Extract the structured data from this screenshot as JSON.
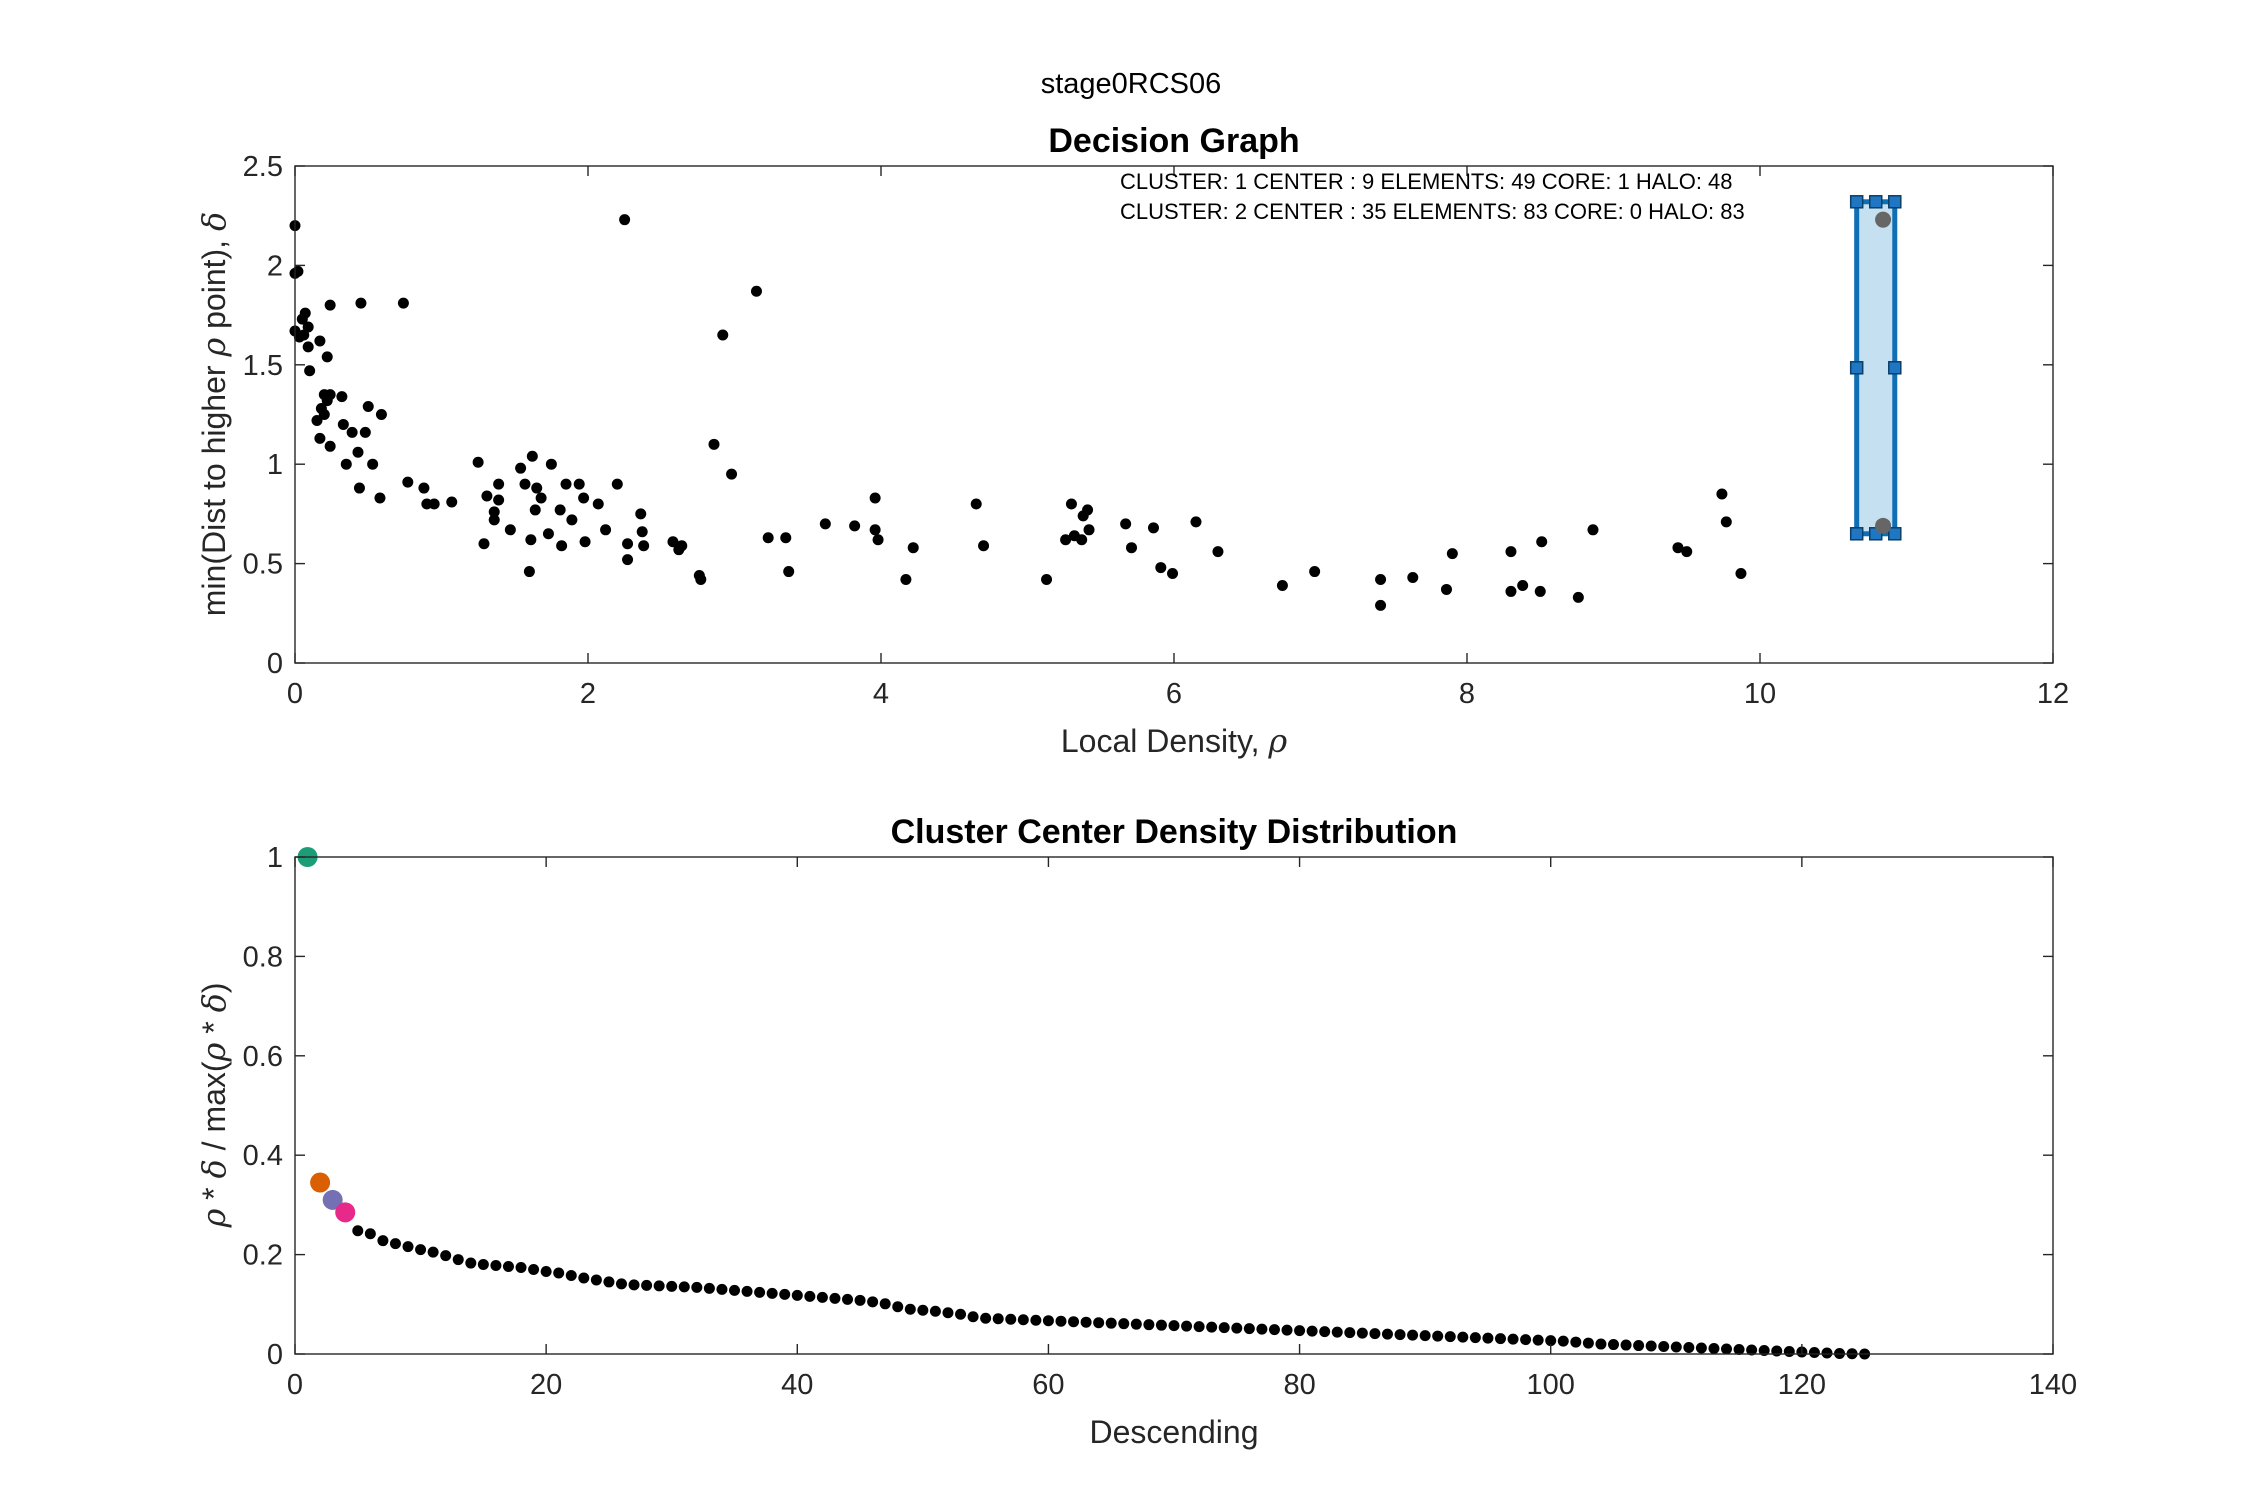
{
  "figure": {
    "super_title": "stage0RCS06"
  },
  "chart_data": [
    {
      "type": "scatter",
      "title": "Decision Graph",
      "xlabel": "Local Density, ρ",
      "xlabel_text": "Local Density, ",
      "xlabel_symbol": "ρ",
      "ylabel": "min(Dist to higher ρ point), δ",
      "ylabel_parts": [
        "min(Dist to higher ",
        "ρ",
        " point), ",
        "δ"
      ],
      "xlim": [
        0,
        12
      ],
      "ylim": [
        0,
        2.5
      ],
      "xticks": [
        0,
        2,
        4,
        6,
        8,
        10,
        12
      ],
      "yticks": [
        0,
        0.5,
        1,
        1.5,
        2,
        2.5
      ],
      "xtick_labels": [
        "0",
        "2",
        "4",
        "6",
        "8",
        "10",
        "12"
      ],
      "ytick_labels": [
        "0",
        "0.5",
        "1",
        "1.5",
        "2",
        "2.5"
      ],
      "grid": false,
      "annotations": [
        "CLUSTER: 1 CENTER : 9 ELEMENTS: 49 CORE: 1 HALO: 48",
        "CLUSTER: 2 CENTER : 35 ELEMENTS: 83 CORE: 0 HALO: 83"
      ],
      "marker_color": "#000000",
      "selection_rect": {
        "x": [
          10.66,
          10.92
        ],
        "y": [
          0.65,
          2.32
        ],
        "fill": "#c5e0f0",
        "stroke": "#0f6fb5"
      },
      "highlight_points": {
        "color": "#666666",
        "points": [
          [
            10.84,
            2.23
          ],
          [
            10.84,
            0.69
          ]
        ]
      },
      "points": [
        [
          0.0,
          2.2
        ],
        [
          0.0,
          1.96
        ],
        [
          0.02,
          1.97
        ],
        [
          0.0,
          1.67
        ],
        [
          0.03,
          1.64
        ],
        [
          0.05,
          1.73
        ],
        [
          0.07,
          1.76
        ],
        [
          0.06,
          1.65
        ],
        [
          0.09,
          1.69
        ],
        [
          0.09,
          1.59
        ],
        [
          0.1,
          1.47
        ],
        [
          0.17,
          1.62
        ],
        [
          0.22,
          1.54
        ],
        [
          0.24,
          1.8
        ],
        [
          0.2,
          1.35
        ],
        [
          0.15,
          1.22
        ],
        [
          0.18,
          1.28
        ],
        [
          0.22,
          1.32
        ],
        [
          0.24,
          1.35
        ],
        [
          0.2,
          1.25
        ],
        [
          0.17,
          1.13
        ],
        [
          0.24,
          1.09
        ],
        [
          0.32,
          1.34
        ],
        [
          0.33,
          1.2
        ],
        [
          0.35,
          1.0
        ],
        [
          0.39,
          1.16
        ],
        [
          0.43,
          1.06
        ],
        [
          0.45,
          1.81
        ],
        [
          0.44,
          0.88
        ],
        [
          0.48,
          1.16
        ],
        [
          0.5,
          1.29
        ],
        [
          0.53,
          1.0
        ],
        [
          0.58,
          0.83
        ],
        [
          0.59,
          1.25
        ],
        [
          0.74,
          1.81
        ],
        [
          0.77,
          0.91
        ],
        [
          0.88,
          0.88
        ],
        [
          0.9,
          0.8
        ],
        [
          0.95,
          0.8
        ],
        [
          1.07,
          0.81
        ],
        [
          1.25,
          1.01
        ],
        [
          1.29,
          0.6
        ],
        [
          1.31,
          0.84
        ],
        [
          1.36,
          0.76
        ],
        [
          1.36,
          0.72
        ],
        [
          1.39,
          0.82
        ],
        [
          1.39,
          0.9
        ],
        [
          1.47,
          0.67
        ],
        [
          1.54,
          0.98
        ],
        [
          1.57,
          0.9
        ],
        [
          1.6,
          0.46
        ],
        [
          1.61,
          0.62
        ],
        [
          1.62,
          1.04
        ],
        [
          1.64,
          0.77
        ],
        [
          1.65,
          0.88
        ],
        [
          1.68,
          0.83
        ],
        [
          1.73,
          0.65
        ],
        [
          1.75,
          1.0
        ],
        [
          1.81,
          0.77
        ],
        [
          1.82,
          0.59
        ],
        [
          1.85,
          0.9
        ],
        [
          1.89,
          0.72
        ],
        [
          1.94,
          0.9
        ],
        [
          1.97,
          0.83
        ],
        [
          1.98,
          0.61
        ],
        [
          2.07,
          0.8
        ],
        [
          2.12,
          0.67
        ],
        [
          2.2,
          0.9
        ],
        [
          2.25,
          2.23
        ],
        [
          2.27,
          0.6
        ],
        [
          2.27,
          0.52
        ],
        [
          2.36,
          0.75
        ],
        [
          2.37,
          0.66
        ],
        [
          2.38,
          0.59
        ],
        [
          2.58,
          0.61
        ],
        [
          2.62,
          0.57
        ],
        [
          2.64,
          0.59
        ],
        [
          2.76,
          0.44
        ],
        [
          2.77,
          0.42
        ],
        [
          2.86,
          1.1
        ],
        [
          2.92,
          1.65
        ],
        [
          2.98,
          0.95
        ],
        [
          3.15,
          1.87
        ],
        [
          3.23,
          0.63
        ],
        [
          3.35,
          0.63
        ],
        [
          3.37,
          0.46
        ],
        [
          3.62,
          0.7
        ],
        [
          3.82,
          0.69
        ],
        [
          3.96,
          0.83
        ],
        [
          3.96,
          0.67
        ],
        [
          3.98,
          0.62
        ],
        [
          4.17,
          0.42
        ],
        [
          4.22,
          0.58
        ],
        [
          4.65,
          0.8
        ],
        [
          4.7,
          0.59
        ],
        [
          5.13,
          0.42
        ],
        [
          5.26,
          0.62
        ],
        [
          5.3,
          0.8
        ],
        [
          5.32,
          0.64
        ],
        [
          5.37,
          0.62
        ],
        [
          5.38,
          0.74
        ],
        [
          5.41,
          0.77
        ],
        [
          5.42,
          0.67
        ],
        [
          5.67,
          0.7
        ],
        [
          5.71,
          0.58
        ],
        [
          5.86,
          0.68
        ],
        [
          5.91,
          0.48
        ],
        [
          5.99,
          0.45
        ],
        [
          6.15,
          0.71
        ],
        [
          6.3,
          0.56
        ],
        [
          6.74,
          0.39
        ],
        [
          6.96,
          0.46
        ],
        [
          7.41,
          0.42
        ],
        [
          7.41,
          0.29
        ],
        [
          7.63,
          0.43
        ],
        [
          7.86,
          0.37
        ],
        [
          7.9,
          0.55
        ],
        [
          8.3,
          0.56
        ],
        [
          8.3,
          0.36
        ],
        [
          8.38,
          0.39
        ],
        [
          8.5,
          0.36
        ],
        [
          8.51,
          0.61
        ],
        [
          8.76,
          0.33
        ],
        [
          8.86,
          0.67
        ],
        [
          9.44,
          0.58
        ],
        [
          9.5,
          0.56
        ],
        [
          9.74,
          0.85
        ],
        [
          9.77,
          0.71
        ],
        [
          9.87,
          0.45
        ]
      ]
    },
    {
      "type": "scatter",
      "title": "Cluster Center Density Distribution",
      "xlabel": "Descending",
      "ylabel": "ρ * δ / max(ρ * δ)",
      "ylabel_parts": [
        "ρ",
        " * ",
        "δ",
        " / max(",
        "ρ",
        " * ",
        "δ",
        ")"
      ],
      "xlim": [
        0,
        140
      ],
      "ylim": [
        0,
        1
      ],
      "xticks": [
        0,
        20,
        40,
        60,
        80,
        100,
        120,
        140
      ],
      "yticks": [
        0,
        0.2,
        0.4,
        0.6,
        0.8,
        1
      ],
      "xtick_labels": [
        "0",
        "20",
        "40",
        "60",
        "80",
        "100",
        "120",
        "140"
      ],
      "ytick_labels": [
        "0",
        "0.2",
        "0.4",
        "0.6",
        "0.8",
        "1"
      ],
      "grid": false,
      "marker_color": "#000000",
      "highlight_points": [
        {
          "x": 1,
          "y": 1.0,
          "color": "#1b9e77"
        },
        {
          "x": 2,
          "y": 0.345,
          "color": "#d95f02"
        },
        {
          "x": 3,
          "y": 0.31,
          "color": "#7570b3"
        },
        {
          "x": 4,
          "y": 0.285,
          "color": "#e7298a"
        }
      ],
      "values": [
        0.248,
        0.242,
        0.228,
        0.222,
        0.216,
        0.21,
        0.205,
        0.198,
        0.19,
        0.183,
        0.18,
        0.178,
        0.176,
        0.174,
        0.17,
        0.166,
        0.163,
        0.158,
        0.153,
        0.149,
        0.145,
        0.141,
        0.139,
        0.138,
        0.137,
        0.136,
        0.135,
        0.134,
        0.132,
        0.13,
        0.128,
        0.126,
        0.124,
        0.122,
        0.12,
        0.118,
        0.116,
        0.114,
        0.112,
        0.11,
        0.108,
        0.105,
        0.101,
        0.095,
        0.09,
        0.088,
        0.086,
        0.083,
        0.08,
        0.075,
        0.072,
        0.071,
        0.07,
        0.069,
        0.068,
        0.067,
        0.066,
        0.065,
        0.064,
        0.063,
        0.062,
        0.061,
        0.06,
        0.059,
        0.058,
        0.057,
        0.056,
        0.055,
        0.054,
        0.053,
        0.052,
        0.051,
        0.05,
        0.049,
        0.048,
        0.047,
        0.046,
        0.045,
        0.044,
        0.043,
        0.042,
        0.041,
        0.04,
        0.039,
        0.038,
        0.037,
        0.036,
        0.035,
        0.034,
        0.033,
        0.032,
        0.031,
        0.03,
        0.029,
        0.028,
        0.027,
        0.026,
        0.024,
        0.022,
        0.02,
        0.019,
        0.018,
        0.017,
        0.016,
        0.015,
        0.014,
        0.013,
        0.012,
        0.011,
        0.01,
        0.009,
        0.008,
        0.007,
        0.006,
        0.005,
        0.004,
        0.003,
        0.002,
        0.001,
        0.0005,
        0.0
      ],
      "values_start_x": 5
    }
  ]
}
